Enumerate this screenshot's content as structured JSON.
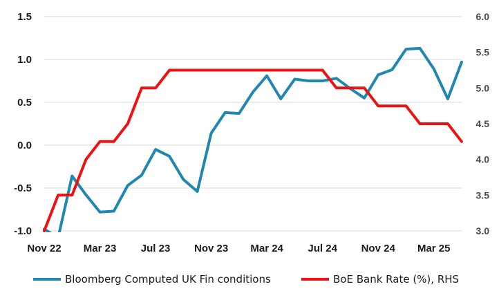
{
  "chart_data": {
    "type": "line",
    "x_labels": [
      "Nov 22",
      "Mar 23",
      "Jul 23",
      "Nov 23",
      "Mar 24",
      "Jul 24",
      "Nov 24",
      "Mar 25"
    ],
    "x": [
      "Nov 22",
      "Dec 22",
      "Jan 23",
      "Feb 23",
      "Mar 23",
      "Apr 23",
      "May 23",
      "Jun 23",
      "Jul 23",
      "Aug 23",
      "Sep 23",
      "Oct 23",
      "Nov 23",
      "Dec 23",
      "Jan 24",
      "Feb 24",
      "Mar 24",
      "Apr 24",
      "May 24",
      "Jun 24",
      "Jul 24",
      "Aug 24",
      "Sep 24",
      "Oct 24",
      "Nov 24",
      "Dec 24",
      "Jan 25",
      "Feb 25",
      "Mar 25",
      "Apr 25",
      "May 25"
    ],
    "left_axis": {
      "ylim": [
        -1.0,
        1.5
      ],
      "ticks": [
        "-1.0",
        "-0.5",
        "0.0",
        "0.5",
        "1.0",
        "1.5"
      ]
    },
    "right_axis": {
      "ylim": [
        3.0,
        6.0
      ],
      "ticks": [
        "3.0",
        "3.5",
        "4.0",
        "4.5",
        "5.0",
        "5.5",
        "6.0"
      ]
    },
    "grid": "horizontal",
    "legend_position": "bottom",
    "series": [
      {
        "name": "Bloomberg Computed UK Fin conditions",
        "axis": "left",
        "color": "#1f87b0",
        "values": [
          -0.98,
          -1.08,
          -0.36,
          -0.58,
          -0.78,
          -0.77,
          -0.47,
          -0.35,
          -0.05,
          -0.13,
          -0.4,
          -0.54,
          0.14,
          0.38,
          0.37,
          0.62,
          0.81,
          0.54,
          0.77,
          0.75,
          0.75,
          0.78,
          0.66,
          0.55,
          0.82,
          0.88,
          1.12,
          1.13,
          0.89,
          0.54,
          0.97
        ]
      },
      {
        "name": "BoE Bank Rate (%), RHS",
        "axis": "right",
        "color": "#ee1111",
        "values": [
          3.0,
          3.5,
          3.5,
          4.0,
          4.25,
          4.25,
          4.5,
          5.0,
          5.0,
          5.25,
          5.25,
          5.25,
          5.25,
          5.25,
          5.25,
          5.25,
          5.25,
          5.25,
          5.25,
          5.25,
          5.25,
          5.0,
          5.0,
          5.0,
          4.75,
          4.75,
          4.75,
          4.5,
          4.5,
          4.5,
          4.25
        ]
      }
    ]
  }
}
